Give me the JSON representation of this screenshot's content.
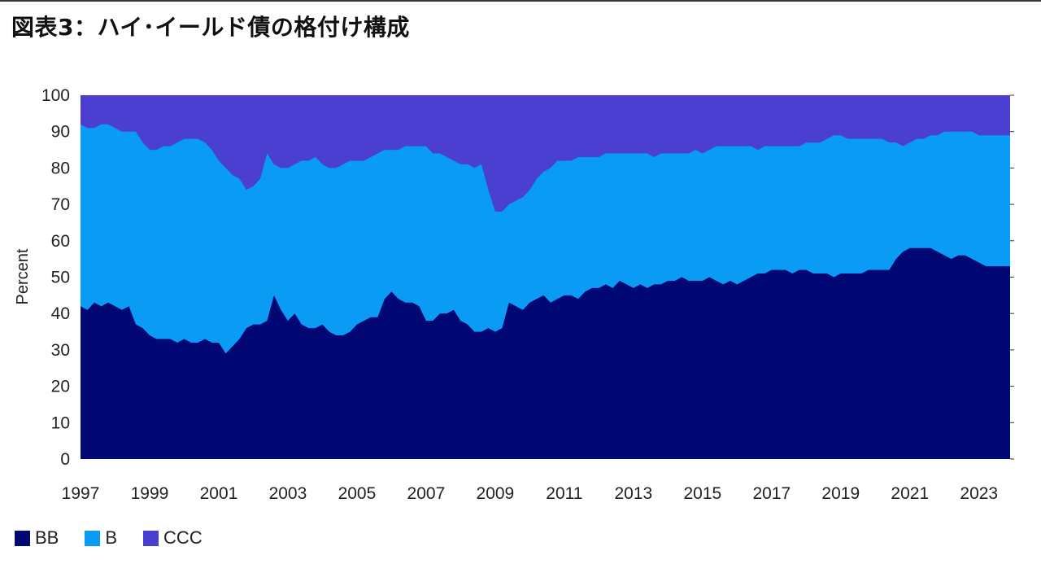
{
  "title": "図表3：ハイ･イールド債の格付け構成",
  "colors": {
    "BB": "#020873",
    "B": "#0a9bf5",
    "CCC": "#4a3fd0"
  },
  "chart_data": {
    "type": "area",
    "stacked": true,
    "ylabel": "Percent",
    "xlabel": "",
    "ylim": [
      0,
      100
    ],
    "xlim": [
      1997.0,
      2023.9
    ],
    "yticks": [
      0,
      10,
      20,
      30,
      40,
      50,
      60,
      70,
      80,
      90,
      100
    ],
    "xticks": [
      "1997",
      "1999",
      "2001",
      "2003",
      "2005",
      "2007",
      "2009",
      "2011",
      "2013",
      "2015",
      "2017",
      "2019",
      "2021",
      "2023"
    ],
    "legend_position": "bottom-left",
    "grid": false,
    "series": [
      {
        "name": "BB",
        "color": "#020873"
      },
      {
        "name": "B",
        "color": "#0a9bf5"
      },
      {
        "name": "CCC",
        "color": "#4a3fd0"
      }
    ],
    "x": [
      1997.0,
      1997.2,
      1997.4,
      1997.6,
      1997.8,
      1998.0,
      1998.2,
      1998.4,
      1998.6,
      1998.8,
      1999.0,
      1999.2,
      1999.4,
      1999.6,
      1999.8,
      2000.0,
      2000.2,
      2000.4,
      2000.6,
      2000.8,
      2001.0,
      2001.2,
      2001.4,
      2001.6,
      2001.8,
      2002.0,
      2002.2,
      2002.4,
      2002.6,
      2002.8,
      2003.0,
      2003.2,
      2003.4,
      2003.6,
      2003.8,
      2004.0,
      2004.2,
      2004.4,
      2004.6,
      2004.8,
      2005.0,
      2005.2,
      2005.4,
      2005.6,
      2005.8,
      2006.0,
      2006.2,
      2006.4,
      2006.6,
      2006.8,
      2007.0,
      2007.2,
      2007.4,
      2007.6,
      2007.8,
      2008.0,
      2008.2,
      2008.4,
      2008.6,
      2008.8,
      2009.0,
      2009.2,
      2009.4,
      2009.6,
      2009.8,
      2010.0,
      2010.2,
      2010.4,
      2010.6,
      2010.8,
      2011.0,
      2011.2,
      2011.4,
      2011.6,
      2011.8,
      2012.0,
      2012.2,
      2012.4,
      2012.6,
      2012.8,
      2013.0,
      2013.2,
      2013.4,
      2013.6,
      2013.8,
      2014.0,
      2014.2,
      2014.4,
      2014.6,
      2014.8,
      2015.0,
      2015.2,
      2015.4,
      2015.6,
      2015.8,
      2016.0,
      2016.2,
      2016.4,
      2016.6,
      2016.8,
      2017.0,
      2017.2,
      2017.4,
      2017.6,
      2017.8,
      2018.0,
      2018.2,
      2018.4,
      2018.6,
      2018.8,
      2019.0,
      2019.2,
      2019.4,
      2019.6,
      2019.8,
      2020.0,
      2020.2,
      2020.4,
      2020.6,
      2020.8,
      2021.0,
      2021.2,
      2021.4,
      2021.6,
      2021.8,
      2022.0,
      2022.2,
      2022.4,
      2022.6,
      2022.8,
      2023.0,
      2023.2,
      2023.4,
      2023.6,
      2023.9
    ],
    "bb": [
      42,
      41,
      43,
      42,
      43,
      42,
      41,
      42,
      37,
      36,
      34,
      33,
      33,
      33,
      32,
      33,
      32,
      32,
      33,
      32,
      32,
      29,
      31,
      33,
      36,
      37,
      37,
      38,
      45,
      41,
      38,
      40,
      37,
      36,
      36,
      37,
      35,
      34,
      34,
      35,
      37,
      38,
      39,
      39,
      44,
      46,
      44,
      43,
      43,
      42,
      38,
      38,
      40,
      40,
      41,
      38,
      37,
      35,
      35,
      36,
      35,
      36,
      43,
      42,
      41,
      43,
      44,
      45,
      43,
      44,
      45,
      45,
      44,
      46,
      47,
      47,
      48,
      47,
      49,
      48,
      47,
      48,
      47,
      48,
      48,
      49,
      49,
      50,
      49,
      49,
      49,
      50,
      49,
      48,
      49,
      48,
      49,
      50,
      51,
      51,
      52,
      52,
      52,
      51,
      52,
      52,
      51,
      51,
      51,
      50,
      51,
      51,
      51,
      51,
      52,
      52,
      52,
      52,
      55,
      57,
      58,
      58,
      58,
      58,
      57,
      56,
      55,
      56,
      56,
      55,
      54,
      53,
      53,
      53,
      53
    ],
    "bb_b": [
      92,
      91,
      91,
      92,
      92,
      91,
      90,
      90,
      90,
      87,
      85,
      85,
      86,
      86,
      87,
      88,
      88,
      88,
      87,
      85,
      82,
      80,
      78,
      77,
      74,
      75,
      77,
      84,
      81,
      80,
      80,
      81,
      82,
      82,
      83,
      81,
      80,
      80,
      81,
      82,
      82,
      82,
      83,
      84,
      85,
      85,
      85,
      86,
      86,
      86,
      86,
      84,
      84,
      83,
      82,
      81,
      81,
      80,
      81,
      74,
      68,
      68,
      70,
      71,
      72,
      74,
      77,
      79,
      80,
      82,
      82,
      82,
      83,
      83,
      83,
      83,
      84,
      84,
      84,
      84,
      84,
      84,
      84,
      83,
      84,
      84,
      84,
      84,
      84,
      85,
      84,
      85,
      86,
      86,
      86,
      86,
      86,
      86,
      85,
      86,
      86,
      86,
      86,
      86,
      86,
      87,
      87,
      87,
      88,
      89,
      89,
      88,
      88,
      88,
      88,
      88,
      88,
      87,
      87,
      86,
      87,
      88,
      88,
      89,
      89,
      90,
      90,
      90,
      90,
      90,
      89,
      89,
      89,
      89,
      89
    ]
  }
}
